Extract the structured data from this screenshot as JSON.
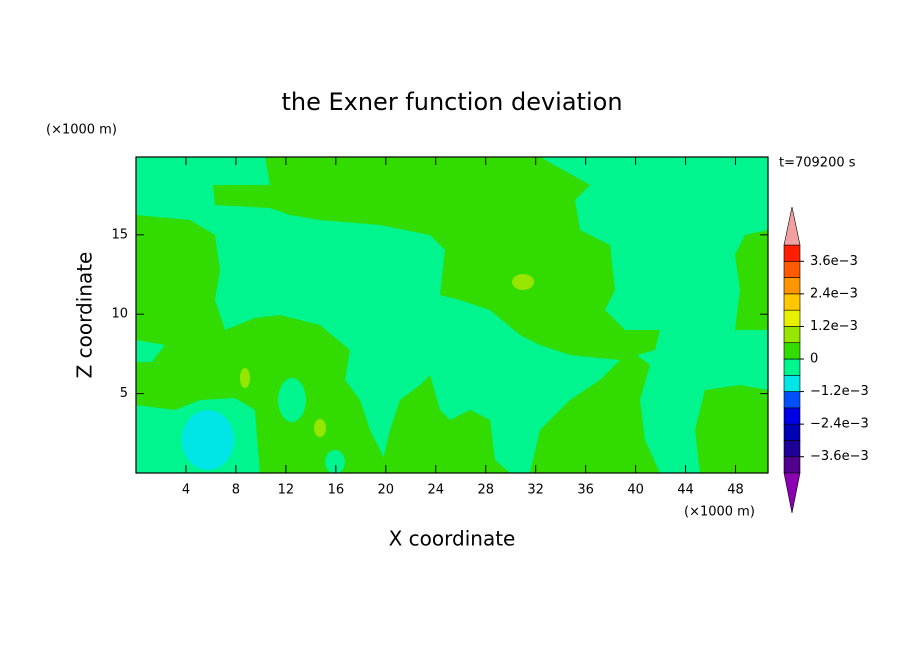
{
  "chart_data": {
    "type": "contour",
    "title": "the Exner function deviation",
    "xlabel": "X coordinate",
    "ylabel": "Z coordinate",
    "xunit": "(×1000 m)",
    "yunit": "(×1000 m)",
    "time_label": "t=709200 s",
    "xlim": [
      0,
      50.6
    ],
    "ylim": [
      0,
      19.9
    ],
    "xticks": [
      4,
      8,
      12,
      16,
      20,
      24,
      28,
      32,
      36,
      40,
      44,
      48
    ],
    "yticks": [
      5,
      10,
      15
    ],
    "levels": [
      -0.0042,
      -0.0036,
      -0.003,
      -0.0024,
      -0.0018,
      -0.0012,
      -0.0006,
      0,
      0.0006,
      0.0012,
      0.0018,
      0.0024,
      0.003,
      0.0036,
      0.0042
    ],
    "colors": [
      "#50008c",
      "#1e0096",
      "#0000b4",
      "#0000e6",
      "#0050ff",
      "#00e6e6",
      "#00f58f",
      "#32dc00",
      "#96e600",
      "#e6f000",
      "#ffc800",
      "#ff9600",
      "#ff5a00",
      "#ff1e00"
    ],
    "extend_colors": [
      "#8c00b4",
      "#f0a0a0"
    ],
    "colorbar_ticks": [
      {
        "value": -0.0036,
        "label": "−3.6e−3"
      },
      {
        "value": -0.0024,
        "label": "−2.4e−3"
      },
      {
        "value": -0.0012,
        "label": "−1.2e−3"
      },
      0,
      {
        "value": 0.0012,
        "label": "1.2e−3"
      },
      {
        "value": 0.0024,
        "label": "2.4e−3"
      },
      {
        "value": 0.0036,
        "label": "3.6e−3"
      }
    ]
  }
}
